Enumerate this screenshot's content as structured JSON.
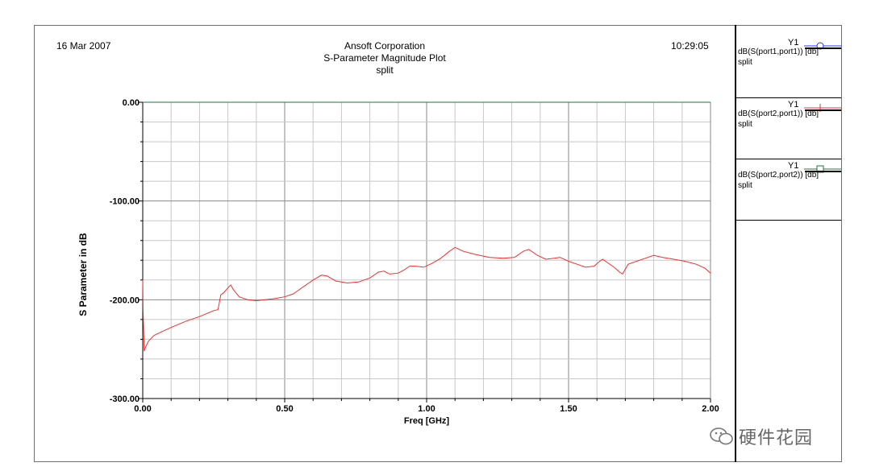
{
  "header": {
    "date": "16 Mar 2007",
    "company": "Ansoft Corporation",
    "plot_title": "S-Parameter Magnitude Plot",
    "subtitle": "split",
    "time": "10:29:05"
  },
  "legend": [
    {
      "axis": "Y1",
      "expr": "dB(S(port1,port1)) [db]",
      "sub": "split",
      "color": "#2233ff",
      "marker": "circle"
    },
    {
      "axis": "Y1",
      "expr": "dB(S(port2,port1)) [db]",
      "sub": "split",
      "color": "#ff2a2a",
      "marker": "plus"
    },
    {
      "axis": "Y1",
      "expr": "dB(S(port2,port2)) [db]",
      "sub": "split",
      "color": "#1a7a3a",
      "marker": "square"
    }
  ],
  "watermark": {
    "text": "硬件花园",
    "icon": "wechat-icon"
  },
  "chart_data": {
    "type": "line",
    "xlabel": "Freq [GHz]",
    "ylabel": "S Parameter in dB",
    "xlim": [
      0,
      2
    ],
    "ylim": [
      -300,
      0
    ],
    "x_ticks": [
      "0.00",
      "0.50",
      "1.00",
      "1.50",
      "2.00"
    ],
    "y_ticks": [
      "0.00",
      "-100.00",
      "-200.00",
      "-300.00"
    ],
    "grid": true,
    "series": [
      {
        "name": "dB(S(port1,port1)) [db]",
        "color": "#2233ff",
        "x": [
          0,
          2
        ],
        "y": [
          0,
          0
        ]
      },
      {
        "name": "dB(S(port2,port2)) [db]",
        "color": "#1a7a3a",
        "x": [
          0,
          2
        ],
        "y": [
          0,
          0
        ]
      },
      {
        "name": "dB(S(port2,port1)) [db]",
        "color": "#ff2a2a",
        "x": [
          0,
          0.001,
          0.003,
          0.005,
          0.01,
          0.02,
          0.04,
          0.07,
          0.1,
          0.15,
          0.2,
          0.25,
          0.265,
          0.275,
          0.285,
          0.3,
          0.31,
          0.32,
          0.34,
          0.37,
          0.4,
          0.43,
          0.46,
          0.5,
          0.53,
          0.56,
          0.6,
          0.63,
          0.65,
          0.68,
          0.72,
          0.76,
          0.8,
          0.83,
          0.85,
          0.87,
          0.9,
          0.92,
          0.94,
          0.96,
          0.99,
          1.02,
          1.05,
          1.08,
          1.1,
          1.13,
          1.17,
          1.22,
          1.27,
          1.31,
          1.34,
          1.36,
          1.39,
          1.42,
          1.45,
          1.47,
          1.5,
          1.53,
          1.56,
          1.59,
          1.61,
          1.62,
          1.64,
          1.66,
          1.68,
          1.69,
          1.71,
          1.74,
          1.77,
          1.8,
          1.83,
          1.87,
          1.91,
          1.95,
          1.98,
          2.0
        ],
        "y": [
          -180,
          -210,
          -230,
          -252,
          -248,
          -242,
          -236,
          -232,
          -228,
          -222,
          -217,
          -211,
          -210,
          -195,
          -193,
          -188,
          -185,
          -190,
          -197,
          -200,
          -201,
          -200,
          -199,
          -197,
          -194,
          -188,
          -180,
          -175,
          -176,
          -181,
          -183,
          -182,
          -178,
          -172,
          -171,
          -174,
          -173,
          -170,
          -166,
          -166,
          -167,
          -163,
          -158,
          -151,
          -147,
          -151,
          -154,
          -157,
          -158,
          -157,
          -151,
          -149,
          -155,
          -159,
          -158,
          -157,
          -161,
          -164,
          -167,
          -166,
          -161,
          -159,
          -163,
          -167,
          -172,
          -174,
          -164,
          -161,
          -158,
          -155,
          -157,
          -159,
          -161,
          -164,
          -168,
          -173
        ]
      }
    ]
  }
}
